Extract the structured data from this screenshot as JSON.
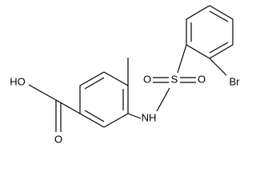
{
  "atoms": {
    "hydroxyl": "HO",
    "carbonyl_oxygen": "O",
    "amine": "NH",
    "sulfur": "S",
    "sulfonyl_oxygen_left": "O",
    "sulfonyl_oxygen_right": "O",
    "bromine": "Br"
  }
}
